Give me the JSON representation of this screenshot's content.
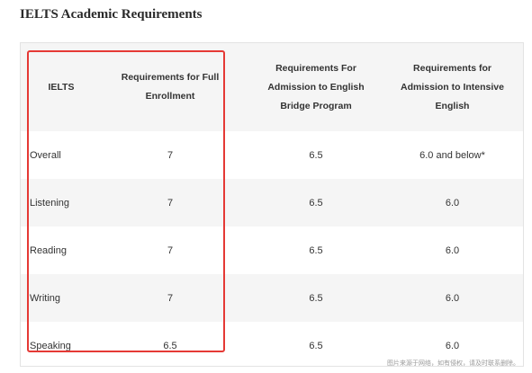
{
  "title": "IELTS Academic Requirements",
  "table": {
    "headers": [
      "IELTS",
      "Requirements for Full Enrollment",
      "Requirements For Admission to English Bridge Program",
      "Requirements for Admission to Intensive English"
    ],
    "rows": [
      {
        "label": "Overall",
        "full": "7",
        "bridge": "6.5",
        "intensive": "6.0 and below*"
      },
      {
        "label": "Listening",
        "full": "7",
        "bridge": "6.5",
        "intensive": "6.0"
      },
      {
        "label": "Reading",
        "full": "7",
        "bridge": "6.5",
        "intensive": "6.0"
      },
      {
        "label": "Writing",
        "full": "7",
        "bridge": "6.5",
        "intensive": "6.0"
      },
      {
        "label": "Speaking",
        "full": "6.5",
        "bridge": "6.5",
        "intensive": "6.0"
      }
    ]
  },
  "annotation": {
    "highlight_color": "#e53935"
  },
  "watermark": "图片来源于网络，如有侵权，请及时联系删除。"
}
